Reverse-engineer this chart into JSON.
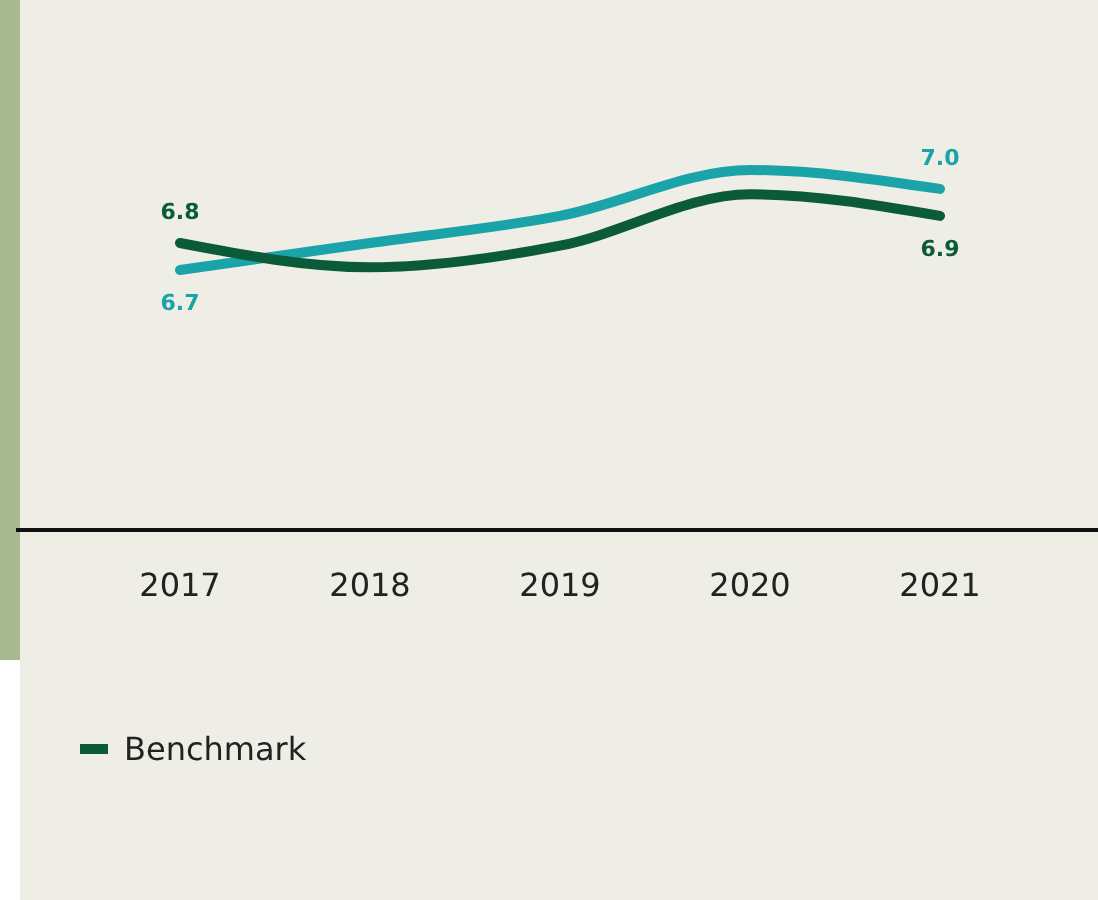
{
  "chart_data": {
    "type": "line",
    "categories": [
      "2017",
      "2018",
      "2019",
      "2020",
      "2021"
    ],
    "legend": "bottom left",
    "marker": "none",
    "line_style": "solid",
    "series": [
      {
        "color": "#1aa3a8",
        "values": [
          6.7,
          6.8,
          6.9,
          7.07,
          7.0
        ],
        "value_labels": [
          "6.7",
          null,
          null,
          null,
          "7.0"
        ]
      },
      {
        "name": "Benchmark",
        "color": "#0b5a3a",
        "values": [
          6.8,
          6.71,
          6.79,
          6.98,
          6.9
        ],
        "value_labels": [
          "6.8",
          null,
          null,
          null,
          "6.9"
        ]
      }
    ]
  }
}
